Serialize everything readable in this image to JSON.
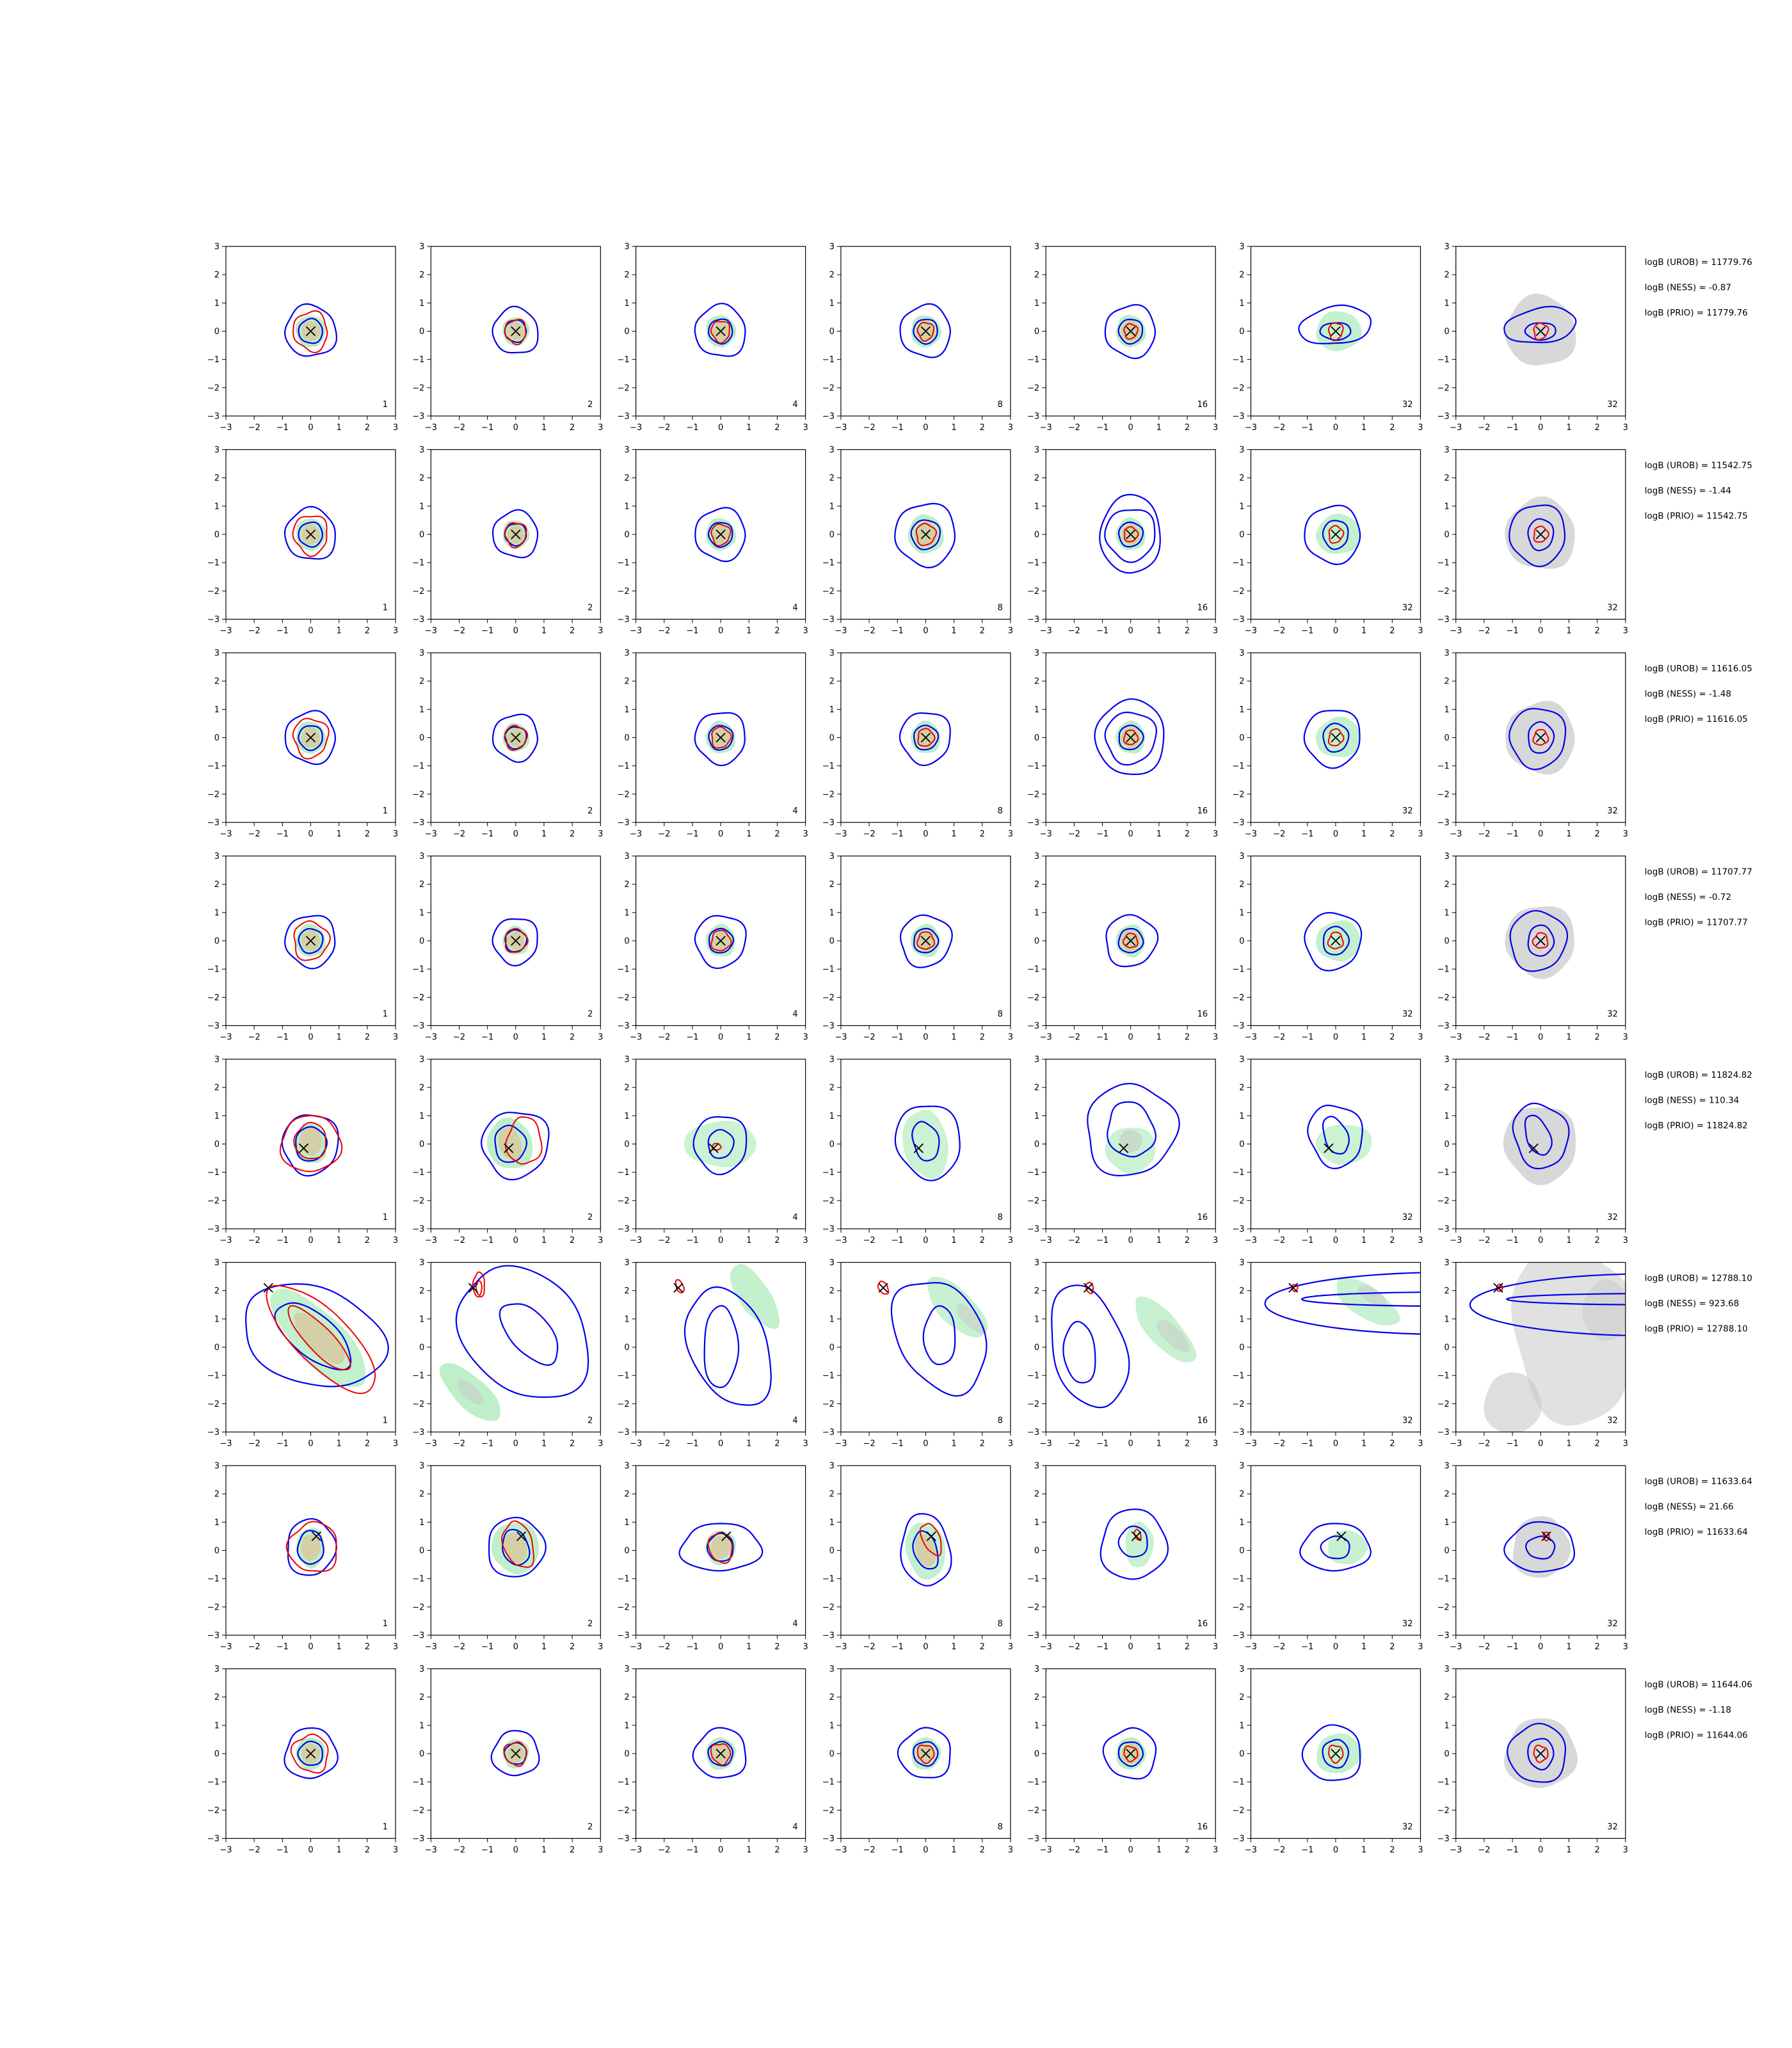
{
  "chart_data": {
    "type": "contour-grid",
    "layout": {
      "rows": 8,
      "cols": 7
    },
    "xlim": [
      -3,
      3
    ],
    "ylim": [
      -3,
      3
    ],
    "ticks": [
      -3,
      -2,
      -1,
      0,
      1,
      2,
      3
    ],
    "tick_labels": [
      "−3",
      "−2",
      "−1",
      "0",
      "1",
      "2",
      "3"
    ],
    "column_annotations": [
      "1",
      "2",
      "4",
      "8",
      "16",
      "32",
      "32"
    ],
    "series_colors": {
      "outer_contours": "#0000ee",
      "inner_contours": "#ee0000",
      "fill_green": "#b4ecc0",
      "fill_grey": "#c8c8c8",
      "marker": "#000000"
    },
    "rows": [
      {
        "marker": [
          0,
          0
        ],
        "notes": [
          "logB (UROB) = 11779.76",
          "logB (NESS) = -0.87",
          "logB (PRIO) = 11779.76"
        ]
      },
      {
        "marker": [
          0,
          0
        ],
        "notes": [
          "logB (UROB) = 11542.75",
          "logB (NESS) = -1.44",
          "logB (PRIO) = 11542.75"
        ]
      },
      {
        "marker": [
          0,
          0
        ],
        "notes": [
          "logB (UROB) = 11616.05",
          "logB (NESS) = -1.48",
          "logB (PRIO) = 11616.05"
        ]
      },
      {
        "marker": [
          0,
          0
        ],
        "notes": [
          "logB (UROB) = 11707.77",
          "logB (NESS) = -0.72",
          "logB (PRIO) = 11707.77"
        ]
      },
      {
        "marker": [
          -0.25,
          -0.15
        ],
        "notes": [
          "logB (UROB) = 11824.82",
          "logB (NESS) = 110.34",
          "logB (PRIO) = 11824.82"
        ]
      },
      {
        "marker": [
          -1.5,
          2.1
        ],
        "notes": [
          "logB (UROB) = 12788.10",
          "logB (NESS) = 923.68",
          "logB (PRIO) = 12788.10"
        ]
      },
      {
        "marker": [
          0.2,
          0.5
        ],
        "notes": [
          "logB (UROB) = 11633.64",
          "logB (NESS) = 21.66",
          "logB (PRIO) = 11633.64"
        ]
      },
      {
        "marker": [
          0,
          0
        ],
        "notes": [
          "logB (UROB) = 11644.06",
          "logB (NESS) = -1.18",
          "logB (PRIO) = 11644.06"
        ]
      }
    ]
  }
}
